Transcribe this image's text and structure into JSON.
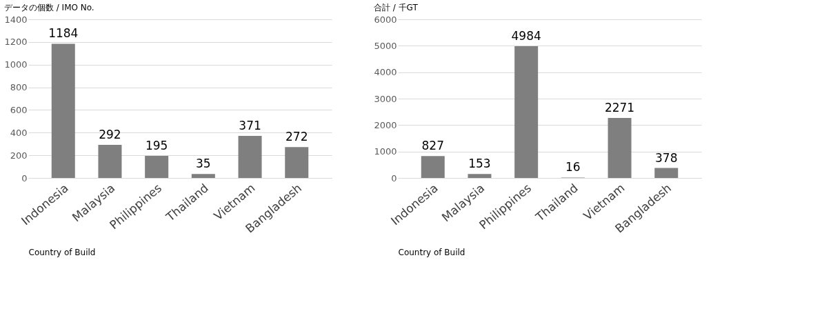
{
  "chart_data": [
    {
      "type": "bar",
      "title": "データの個数 / IMO No.",
      "xlabel": "Country of Build",
      "categories": [
        "Indonesia",
        "Malaysia",
        "Philippines",
        "Thailand",
        "Vietnam",
        "Bangladesh"
      ],
      "values": [
        1184,
        292,
        195,
        35,
        371,
        272
      ],
      "color": "#7f7f7f",
      "ylim": [
        0,
        1400
      ],
      "yticks": [
        0,
        200,
        400,
        600,
        800,
        1000,
        1200,
        1400
      ],
      "grid": "y",
      "data_labels": true
    },
    {
      "type": "bar",
      "title": "合計 / 千GT",
      "xlabel": "Country of Build",
      "categories": [
        "Indonesia",
        "Malaysia",
        "Philippines",
        "Thailand",
        "Vietnam",
        "Bangladesh"
      ],
      "values": [
        827,
        153,
        4984,
        16,
        2271,
        378
      ],
      "color": "#7f7f7f",
      "ylim": [
        0,
        6000
      ],
      "yticks": [
        0,
        1000,
        2000,
        3000,
        4000,
        5000,
        6000
      ],
      "grid": "y",
      "data_labels": true
    }
  ]
}
